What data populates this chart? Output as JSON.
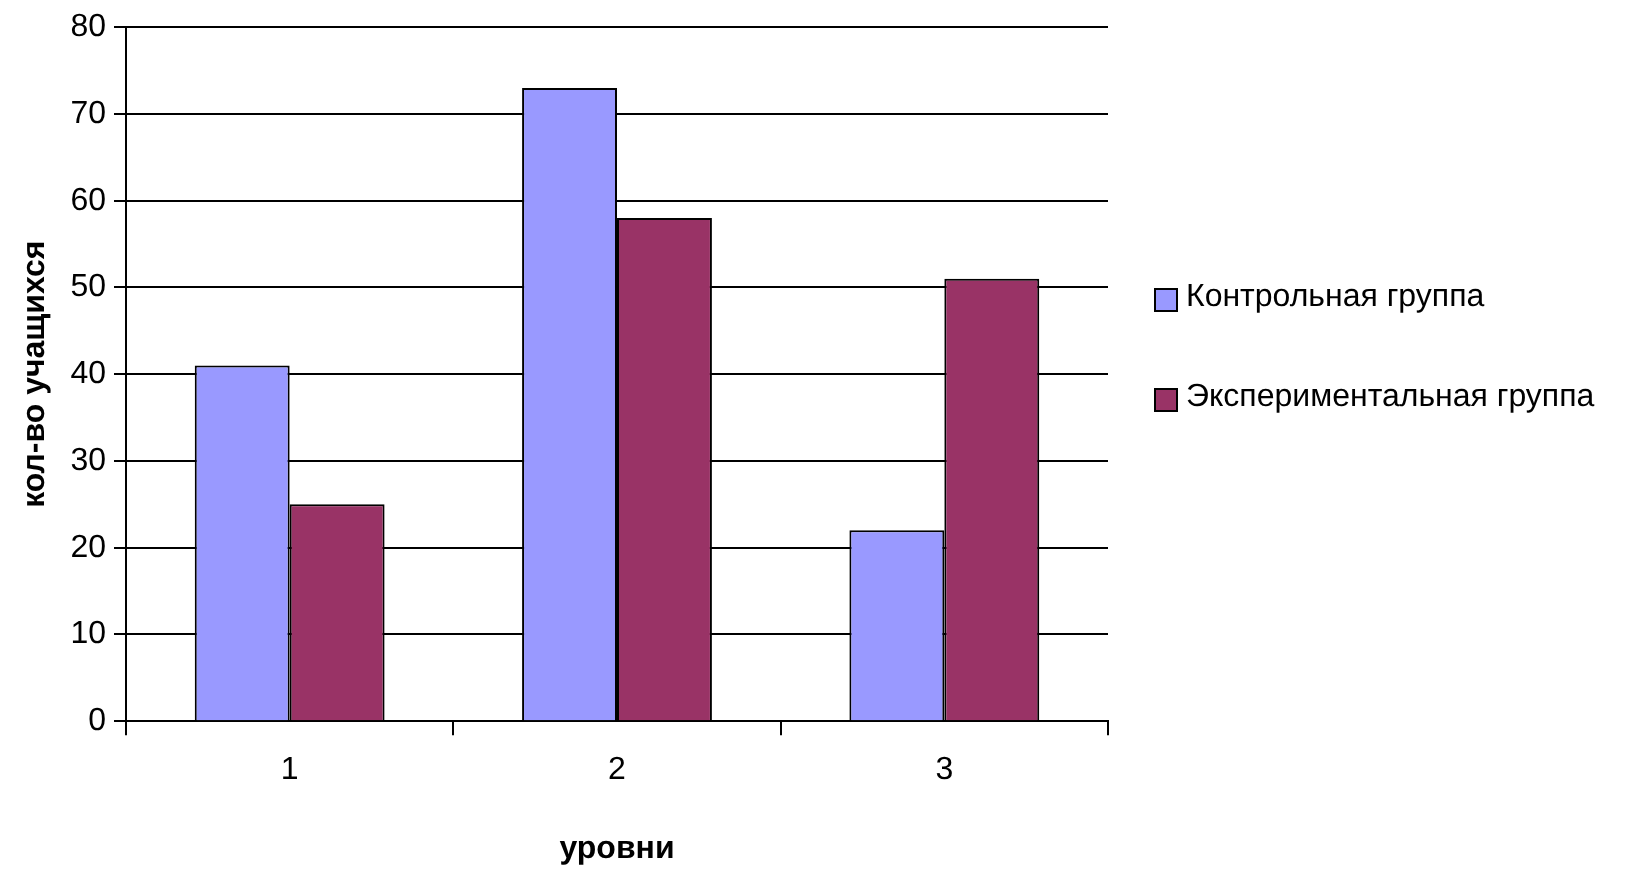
{
  "chart_data": {
    "type": "bar",
    "xlabel": "уровни",
    "ylabel": "кол-во учащихся",
    "categories": [
      "1",
      "2",
      "3"
    ],
    "series": [
      {
        "name": "Контрольная группа",
        "color": "#9999ff",
        "values": [
          41,
          73,
          22
        ]
      },
      {
        "name": "Экспериментальная группа",
        "color": "#993366",
        "values": [
          25,
          58,
          51
        ]
      }
    ],
    "ylim": [
      0,
      80
    ],
    "yticks": [
      0,
      10,
      20,
      30,
      40,
      50,
      60,
      70,
      80
    ],
    "grid": "y",
    "legend": "right"
  }
}
